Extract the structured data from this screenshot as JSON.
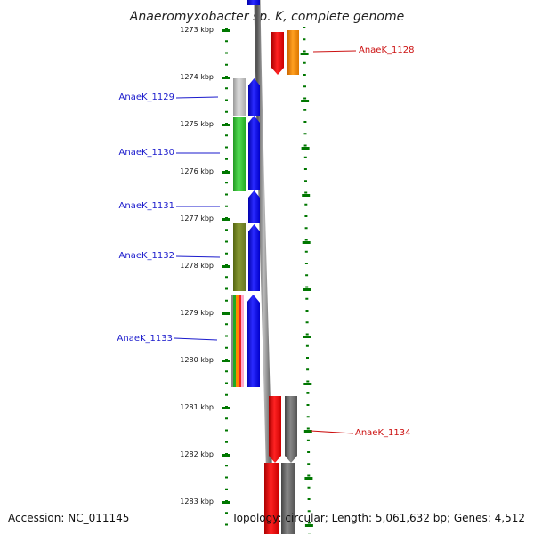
{
  "header": {
    "title": "Anaeromyxobacter sp. K, complete genome"
  },
  "footer": {
    "accession": "Accession: NC_011145",
    "summary": "Topology: circular; Length: 5,061,632 bp; Genes: 4,512"
  },
  "axis": {
    "ticks": [
      "1273 kbp",
      "1274 kbp",
      "1275 kbp",
      "1276 kbp",
      "1277 kbp",
      "1278 kbp",
      "1279 kbp",
      "1280 kbp",
      "1281 kbp",
      "1282 kbp",
      "1283 kbp"
    ]
  },
  "genes": [
    {
      "label": "AnaeK_1128",
      "color": "#cc1111"
    },
    {
      "label": "AnaeK_1129",
      "color": "#1a1acc"
    },
    {
      "label": "AnaeK_1130",
      "color": "#1a1acc"
    },
    {
      "label": "AnaeK_1131",
      "color": "#1a1acc"
    },
    {
      "label": "AnaeK_1132",
      "color": "#1a1acc"
    },
    {
      "label": "AnaeK_1133",
      "color": "#1a1acc"
    },
    {
      "label": "AnaeK_1134",
      "color": "#cc1111"
    }
  ],
  "colors": {
    "forward_cds": "#0000ee",
    "reverse_cds": "#ee0000",
    "orange_feature": "#ff8800",
    "green_feature": "#33cc33",
    "olive_feature": "#778822",
    "grey_feature": "#777777",
    "tick_mark": "#007700",
    "backbone": "#888888"
  }
}
